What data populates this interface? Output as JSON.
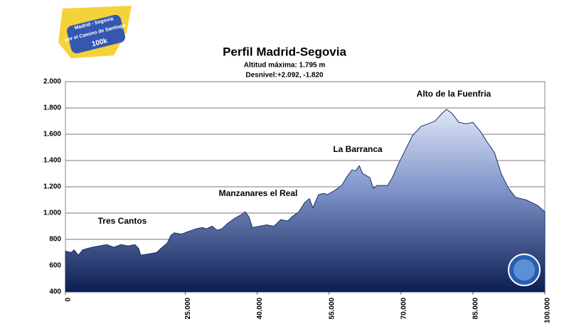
{
  "chart_data": {
    "type": "area",
    "title": "Perfil Madrid-Segovia",
    "subtitle": [
      "Altitud máxima:  1.795  m",
      "Desnivel:+2.092, -1.820"
    ],
    "logo": [
      "Madrid - Segovia",
      "por el Camino de Santiago",
      "100k"
    ],
    "annotations": [
      "Tres Cantos",
      "Manzanares el Real",
      "La Barranca",
      "Alto de la Fuenfria"
    ],
    "x": [
      0,
      1200,
      1800,
      2700,
      3600,
      4500,
      5600,
      7100,
      8600,
      10100,
      11600,
      13100,
      14500,
      15300,
      15700,
      17500,
      19000,
      20200,
      21200,
      22000,
      22700,
      24200,
      25700,
      27200,
      28600,
      29400,
      30600,
      31600,
      32600,
      33800,
      35300,
      36800,
      37500,
      38300,
      39000,
      40500,
      42000,
      43500,
      44900,
      46400,
      47200,
      48700,
      49900,
      50900,
      51600,
      52800,
      53900,
      54600,
      56100,
      57600,
      58800,
      59800,
      60500,
      61300,
      62000,
      63500,
      64200,
      65000,
      67200,
      68200,
      69400,
      70900,
      72400,
      74200,
      75700,
      77100,
      78600,
      79500,
      80600,
      82100,
      83600,
      85000,
      86600,
      88000,
      89500,
      90900,
      92400,
      93900,
      96100,
      98400,
      100000
    ],
    "values": [
      710,
      700,
      720,
      680,
      720,
      730,
      740,
      750,
      760,
      740,
      760,
      750,
      760,
      730,
      680,
      690,
      700,
      740,
      770,
      830,
      850,
      840,
      860,
      880,
      890,
      880,
      900,
      870,
      880,
      920,
      960,
      990,
      1010,
      970,
      890,
      900,
      910,
      900,
      950,
      940,
      970,
      1010,
      1080,
      1110,
      1040,
      1140,
      1150,
      1140,
      1170,
      1210,
      1280,
      1330,
      1320,
      1360,
      1300,
      1270,
      1190,
      1210,
      1210,
      1270,
      1370,
      1480,
      1590,
      1660,
      1680,
      1700,
      1760,
      1790,
      1760,
      1690,
      1680,
      1690,
      1620,
      1540,
      1460,
      1300,
      1190,
      1120,
      1100,
      1060,
      1010
    ],
    "xlim": [
      0,
      100000
    ],
    "xticks": [
      0,
      {
        "value": 25000,
        "label": "25.000"
      },
      {
        "value": 40000,
        "label": "40.000"
      },
      {
        "value": 55000,
        "label": "55.000"
      },
      {
        "value": 70000,
        "label": "70.000"
      },
      {
        "value": 85000,
        "label": "85.000"
      },
      {
        "value": 100000,
        "label": "100.000"
      }
    ],
    "ylim": [
      400,
      2000
    ],
    "yticks": [
      400,
      600,
      800,
      {
        "value": 1000,
        "label": "1.000"
      },
      {
        "value": 1200,
        "label": "1.200"
      },
      {
        "value": 1400,
        "label": "1.400"
      },
      {
        "value": 1600,
        "label": "1.600"
      },
      {
        "value": 1800,
        "label": "1.800"
      },
      {
        "value": 2000,
        "label": "2.000"
      }
    ],
    "grid": true
  }
}
